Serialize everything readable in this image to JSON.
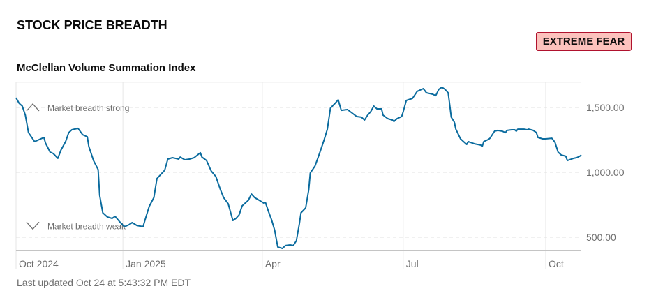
{
  "header": {
    "title": "STOCK PRICE BREADTH",
    "badge": "EXTREME FEAR"
  },
  "colors": {
    "line": "#0a6b9e",
    "badge_bg": "#fcc2bd",
    "badge_border": "#b0122e"
  },
  "chart_data": {
    "type": "line",
    "title": "McClellan Volume Summation Index",
    "xlabel": "",
    "ylabel": "",
    "x_unit": "days since start of range (approx. Oct 24, 2024)",
    "xlim": [
      0,
      365
    ],
    "ylim": [
      410,
      1700
    ],
    "y_ticks": [
      {
        "value": 1500,
        "label": "1,500.00"
      },
      {
        "value": 1000,
        "label": "1,000.00"
      },
      {
        "value": 500,
        "label": "500.00"
      }
    ],
    "x_ticks": [
      {
        "day": 0,
        "label": "Oct 2024"
      },
      {
        "day": 69,
        "label": "Jan 2025"
      },
      {
        "day": 159,
        "label": "Apr"
      },
      {
        "day": 250,
        "label": "Jul"
      },
      {
        "day": 342,
        "label": "Oct"
      }
    ],
    "annotations": [
      {
        "label": "Market breadth strong",
        "icon": "chevron-up-icon",
        "value": 1500
      },
      {
        "label": "Market breadth weak",
        "icon": "chevron-down-icon",
        "value": 590
      }
    ],
    "grid": true,
    "series": [
      {
        "name": "McClellan Volume Summation Index",
        "points": [
          [
            0,
            1575
          ],
          [
            2,
            1532
          ],
          [
            4,
            1511
          ],
          [
            6,
            1441
          ],
          [
            8,
            1306
          ],
          [
            12,
            1237
          ],
          [
            18,
            1269
          ],
          [
            19,
            1226
          ],
          [
            22,
            1156
          ],
          [
            24,
            1145
          ],
          [
            27,
            1108
          ],
          [
            29,
            1172
          ],
          [
            32,
            1237
          ],
          [
            34,
            1306
          ],
          [
            36,
            1328
          ],
          [
            40,
            1339
          ],
          [
            43,
            1290
          ],
          [
            46,
            1274
          ],
          [
            47,
            1199
          ],
          [
            50,
            1091
          ],
          [
            53,
            1022
          ],
          [
            54,
            823
          ],
          [
            56,
            688
          ],
          [
            59,
            656
          ],
          [
            62,
            645
          ],
          [
            64,
            661
          ],
          [
            67,
            618
          ],
          [
            70,
            581
          ],
          [
            73,
            597
          ],
          [
            75,
            613
          ],
          [
            78,
            591
          ],
          [
            82,
            581
          ],
          [
            84,
            661
          ],
          [
            86,
            737
          ],
          [
            89,
            806
          ],
          [
            91,
            952
          ],
          [
            96,
            1016
          ],
          [
            98,
            1102
          ],
          [
            101,
            1113
          ],
          [
            105,
            1102
          ],
          [
            106,
            1118
          ],
          [
            109,
            1097
          ],
          [
            112,
            1102
          ],
          [
            115,
            1113
          ],
          [
            119,
            1151
          ],
          [
            120,
            1118
          ],
          [
            123,
            1091
          ],
          [
            126,
            1011
          ],
          [
            129,
            968
          ],
          [
            132,
            866
          ],
          [
            134,
            806
          ],
          [
            137,
            758
          ],
          [
            140,
            629
          ],
          [
            142,
            645
          ],
          [
            144,
            672
          ],
          [
            146,
            742
          ],
          [
            150,
            785
          ],
          [
            152,
            833
          ],
          [
            154,
            806
          ],
          [
            157,
            785
          ],
          [
            160,
            763
          ],
          [
            161,
            769
          ],
          [
            163,
            699
          ],
          [
            165,
            634
          ],
          [
            167,
            554
          ],
          [
            169,
            425
          ],
          [
            172,
            414
          ],
          [
            174,
            436
          ],
          [
            177,
            441
          ],
          [
            179,
            436
          ],
          [
            181,
            473
          ],
          [
            183,
            608
          ],
          [
            184,
            688
          ],
          [
            187,
            726
          ],
          [
            189,
            866
          ],
          [
            190,
            995
          ],
          [
            193,
            1048
          ],
          [
            195,
            1113
          ],
          [
            197,
            1183
          ],
          [
            199,
            1253
          ],
          [
            201,
            1333
          ],
          [
            203,
            1495
          ],
          [
            206,
            1532
          ],
          [
            208,
            1559
          ],
          [
            210,
            1478
          ],
          [
            214,
            1484
          ],
          [
            217,
            1457
          ],
          [
            220,
            1430
          ],
          [
            223,
            1425
          ],
          [
            225,
            1403
          ],
          [
            227,
            1441
          ],
          [
            229,
            1468
          ],
          [
            231,
            1511
          ],
          [
            233,
            1489
          ],
          [
            236,
            1489
          ],
          [
            237,
            1441
          ],
          [
            240,
            1414
          ],
          [
            243,
            1403
          ],
          [
            244,
            1392
          ],
          [
            246,
            1414
          ],
          [
            249,
            1430
          ],
          [
            250,
            1468
          ],
          [
            252,
            1554
          ],
          [
            256,
            1570
          ],
          [
            259,
            1624
          ],
          [
            263,
            1645
          ],
          [
            265,
            1613
          ],
          [
            269,
            1602
          ],
          [
            271,
            1591
          ],
          [
            273,
            1640
          ],
          [
            275,
            1656
          ],
          [
            277,
            1640
          ],
          [
            279,
            1613
          ],
          [
            280,
            1522
          ],
          [
            281,
            1425
          ],
          [
            283,
            1387
          ],
          [
            284,
            1333
          ],
          [
            287,
            1258
          ],
          [
            291,
            1215
          ],
          [
            292,
            1237
          ],
          [
            296,
            1220
          ],
          [
            300,
            1210
          ],
          [
            301,
            1199
          ],
          [
            302,
            1237
          ],
          [
            305,
            1253
          ],
          [
            306,
            1263
          ],
          [
            309,
            1317
          ],
          [
            311,
            1323
          ],
          [
            314,
            1317
          ],
          [
            316,
            1306
          ],
          [
            317,
            1323
          ],
          [
            320,
            1328
          ],
          [
            322,
            1328
          ],
          [
            323,
            1317
          ],
          [
            324,
            1333
          ],
          [
            328,
            1333
          ],
          [
            330,
            1328
          ],
          [
            331,
            1333
          ],
          [
            334,
            1323
          ],
          [
            336,
            1306
          ],
          [
            337,
            1269
          ],
          [
            340,
            1258
          ],
          [
            342,
            1258
          ],
          [
            346,
            1263
          ],
          [
            348,
            1231
          ],
          [
            350,
            1156
          ],
          [
            352,
            1134
          ],
          [
            355,
            1124
          ],
          [
            356,
            1091
          ],
          [
            360,
            1108
          ],
          [
            362,
            1113
          ],
          [
            364,
            1124
          ],
          [
            365,
            1134
          ]
        ]
      }
    ]
  },
  "footer": {
    "updated": "Last updated Oct 24 at 5:43:32 PM EDT"
  }
}
